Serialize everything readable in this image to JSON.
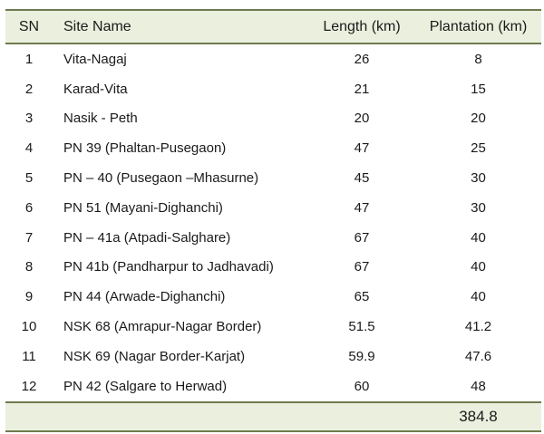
{
  "table": {
    "headers": {
      "sn": "SN",
      "site_name": "Site Name",
      "length": "Length (km)",
      "plantation": "Plantation (km)"
    },
    "rows": [
      {
        "sn": "1",
        "site_name": "Vita-Nagaj",
        "length": "26",
        "plantation": "8"
      },
      {
        "sn": "2",
        "site_name": "Karad-Vita",
        "length": "21",
        "plantation": "15"
      },
      {
        "sn": "3",
        "site_name": "Nasik - Peth",
        "length": "20",
        "plantation": "20"
      },
      {
        "sn": "4",
        "site_name": "PN 39 (Phaltan-Pusegaon)",
        "length": "47",
        "plantation": "25"
      },
      {
        "sn": "5",
        "site_name": "PN – 40 (Pusegaon –Mhasurne)",
        "length": "45",
        "plantation": "30"
      },
      {
        "sn": "6",
        "site_name": "PN 51 (Mayani-Dighanchi)",
        "length": "47",
        "plantation": "30"
      },
      {
        "sn": "7",
        "site_name": "PN – 41a (Atpadi-Salghare)",
        "length": "67",
        "plantation": "40"
      },
      {
        "sn": "8",
        "site_name": "PN 41b (Pandharpur to Jadhavadi)",
        "length": "67",
        "plantation": "40"
      },
      {
        "sn": "9",
        "site_name": "PN 44 (Arwade-Dighanchi)",
        "length": "65",
        "plantation": "40"
      },
      {
        "sn": "10",
        "site_name": "NSK 68 (Amrapur-Nagar Border)",
        "length": "51.5",
        "plantation": "41.2"
      },
      {
        "sn": "11",
        "site_name": "NSK 69 (Nagar Border-Karjat)",
        "length": "59.9",
        "plantation": "47.6"
      },
      {
        "sn": "12",
        "site_name": "PN 42 (Salgare to Herwad)",
        "length": "60",
        "plantation": "48"
      }
    ],
    "total_plantation": "384.8"
  },
  "colors": {
    "header_fill": "#ebf0de",
    "rule_line": "#6e7b4e"
  }
}
